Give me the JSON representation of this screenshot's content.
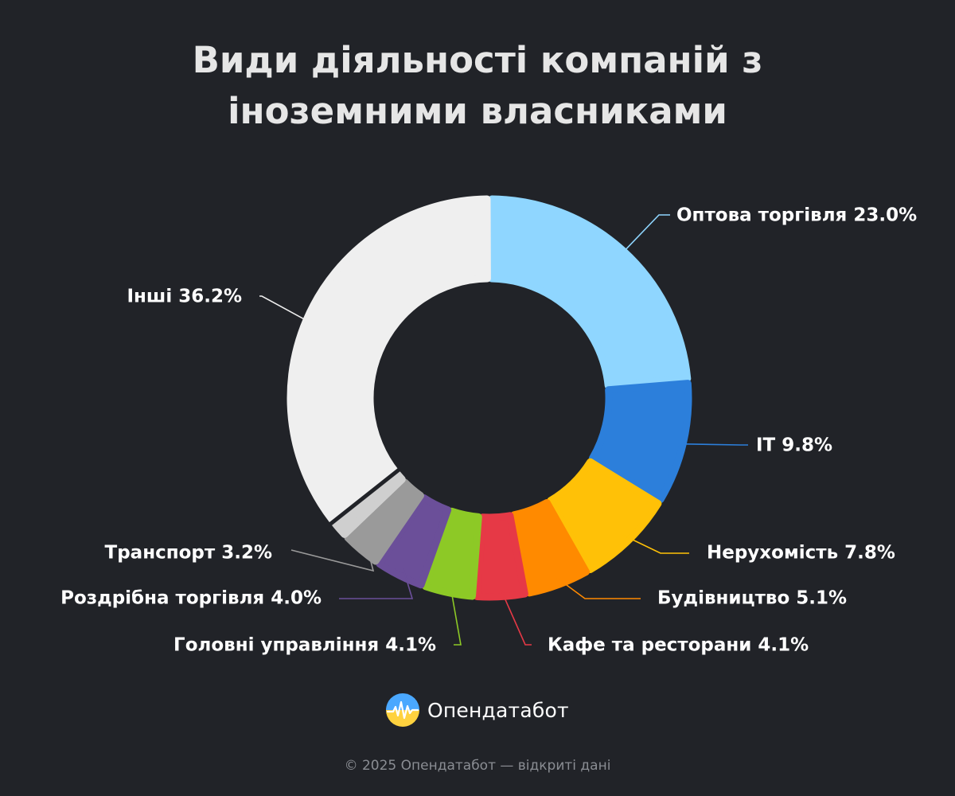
{
  "chart_data": {
    "type": "pie",
    "title_lines": [
      "Види діяльності компаній з",
      "іноземними власниками"
    ],
    "unit": "%",
    "start_at": "top",
    "direction": "clockwise",
    "legend": "none",
    "series": [
      {
        "values": [
          23.0,
          9.8,
          7.8,
          5.1,
          4.1,
          4.1,
          4.0,
          3.2,
          36.2
        ]
      }
    ],
    "categories": [
      "Оптова торгівля",
      "IT",
      "Нерухомість",
      "Будівництво",
      "Кафе та ресторани",
      "Головні управління",
      "Роздрібна торгівля",
      "Транспорт",
      "Інші"
    ],
    "data_labels": [
      "Оптова торгівля 23.0%",
      "IT 9.8%",
      "Нерухомість 7.8%",
      "Будівництво 5.1%",
      "Кафе та ресторани 4.1%",
      "Головні управління 4.1%",
      "Роздрібна торгівля 4.0%",
      "Транспорт 3.2%",
      "Інші 36.2%"
    ],
    "colors": [
      "#8fd6ff",
      "#2c7fdb",
      "#ffc107",
      "#ff8a00",
      "#e63946",
      "#8dc926",
      "#6b4f99",
      "#9a9a9a",
      "#efefef"
    ]
  },
  "brand": {
    "name": "Опендатабот"
  },
  "footer": {
    "text": "© 2025 Опендатабот — відкриті дані"
  },
  "theme": {
    "background": "#212328",
    "title_color": "#e6e6e6",
    "other_slice_color": "#cfcfcf"
  }
}
